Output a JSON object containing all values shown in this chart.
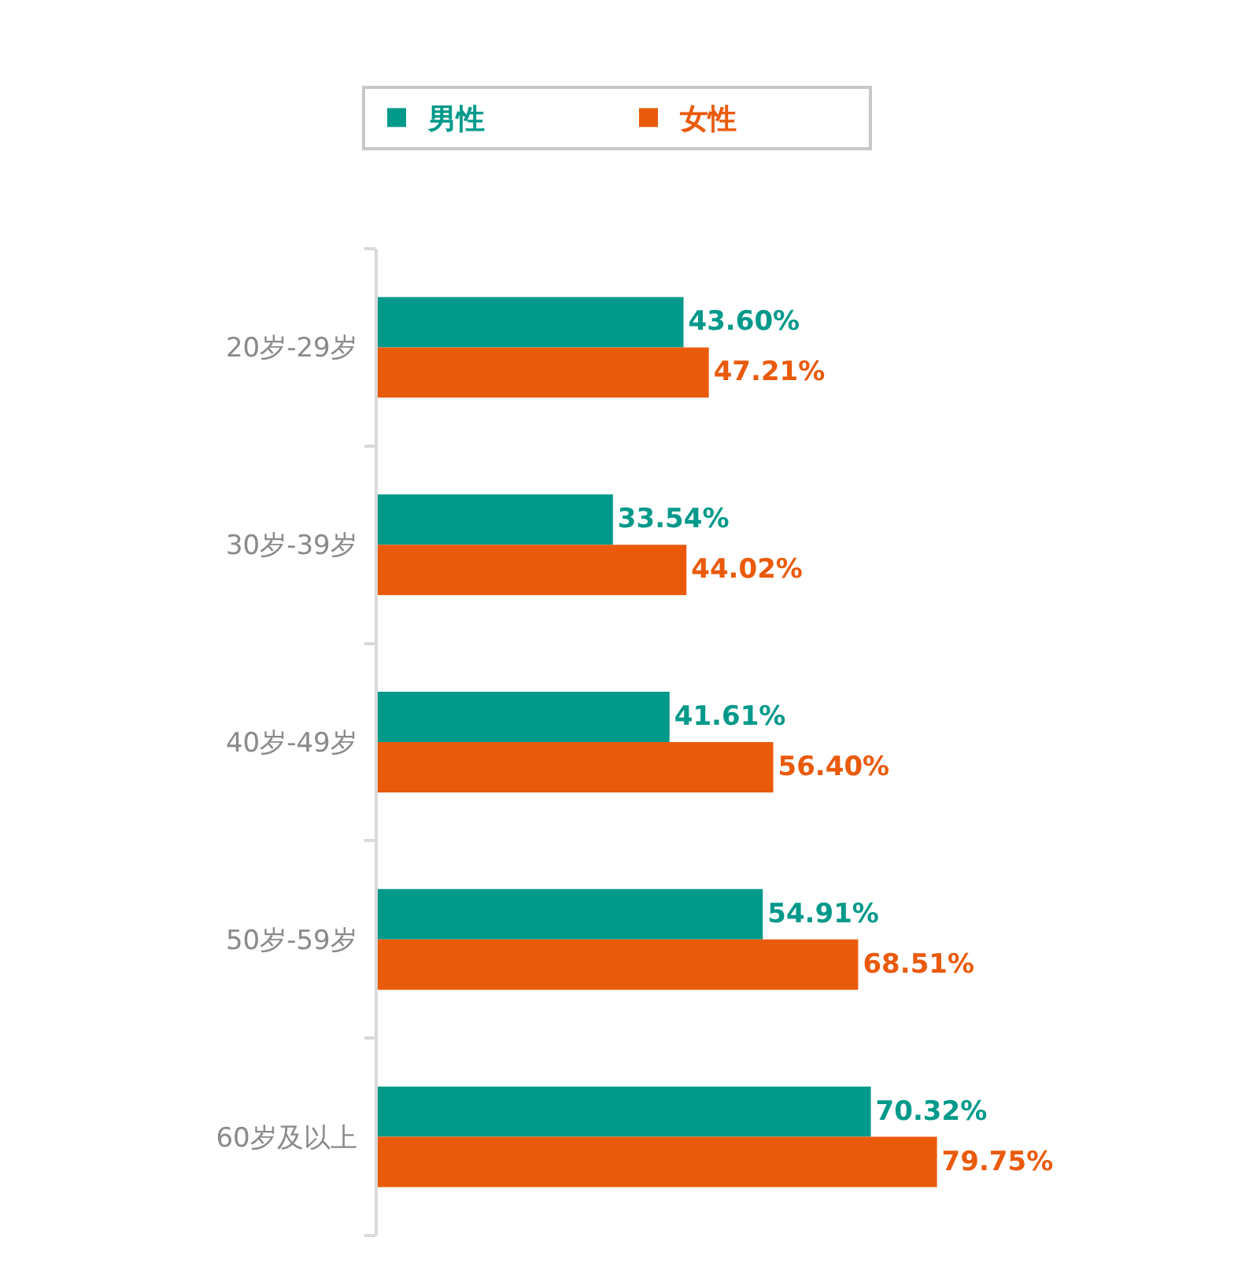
{
  "chart_data": {
    "type": "bar",
    "orientation": "horizontal",
    "categories": [
      "20岁-29岁",
      "30岁-39岁",
      "40岁-49岁",
      "50岁-59岁",
      "60岁及以上"
    ],
    "series": [
      {
        "name": "男性",
        "color": "#00998a",
        "values": [
          43.6,
          33.54,
          41.61,
          54.91,
          70.32
        ],
        "value_labels": [
          "43.60%",
          "33.54%",
          "41.61%",
          "54.91%",
          "70.32%"
        ]
      },
      {
        "name": "女性",
        "color": "#ea5a0b",
        "values": [
          47.21,
          44.02,
          56.4,
          68.51,
          79.75
        ],
        "value_labels": [
          "47.21%",
          "44.02%",
          "56.40%",
          "68.51%",
          "79.75%"
        ]
      }
    ],
    "tick_labels": "y",
    "legend": "top"
  }
}
